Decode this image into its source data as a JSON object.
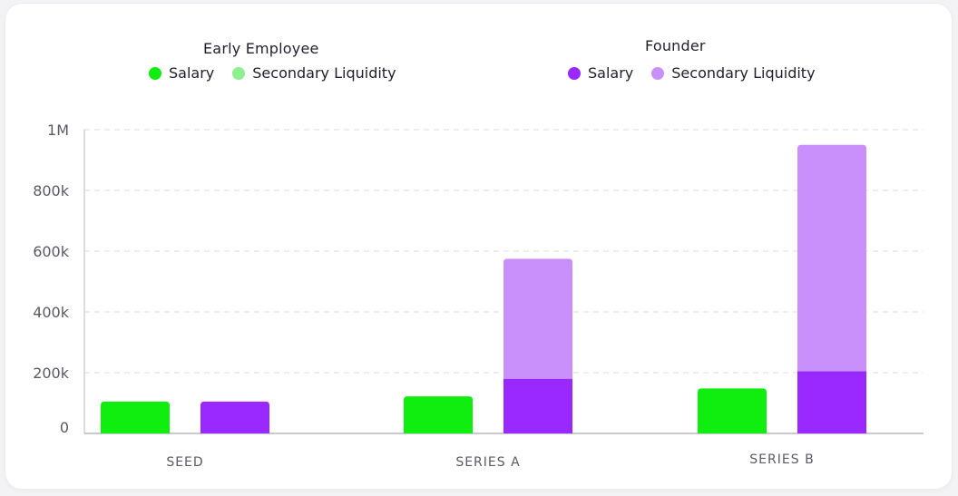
{
  "legend": {
    "groups": [
      {
        "title": "Early Employee",
        "items": [
          {
            "label": "Salary",
            "color": "#10ee10"
          },
          {
            "label": "Secondary Liquidity",
            "color": "#8cf08c"
          }
        ]
      },
      {
        "title": "Founder",
        "items": [
          {
            "label": "Salary",
            "color": "#9a29ff"
          },
          {
            "label": "Secondary Liquidity",
            "color": "#c98ffa"
          }
        ]
      }
    ]
  },
  "chart_data": {
    "type": "bar",
    "stacked": true,
    "categories": [
      "SEED",
      "SERIES A",
      "SERIES B"
    ],
    "ylim": [
      0,
      1000000
    ],
    "yticks": [
      {
        "value": 0,
        "label": "0"
      },
      {
        "value": 200000,
        "label": "200k"
      },
      {
        "value": 400000,
        "label": "400k"
      },
      {
        "value": 600000,
        "label": "600k"
      },
      {
        "value": 800000,
        "label": "800k"
      },
      {
        "value": 1000000,
        "label": "1M"
      }
    ],
    "grid": true,
    "legend_position": "top",
    "series": [
      {
        "group": "Early Employee",
        "name": "Salary",
        "color": "#10ee10",
        "values": [
          105000,
          122000,
          148000
        ]
      },
      {
        "group": "Early Employee",
        "name": "Secondary Liquidity",
        "color": "#8cf08c",
        "values": [
          0,
          0,
          0
        ]
      },
      {
        "group": "Founder",
        "name": "Salary",
        "color": "#9a29ff",
        "values": [
          105000,
          180000,
          205000
        ]
      },
      {
        "group": "Founder",
        "name": "Secondary Liquidity",
        "color": "#c98ffa",
        "values": [
          0,
          395000,
          745000
        ]
      }
    ]
  }
}
